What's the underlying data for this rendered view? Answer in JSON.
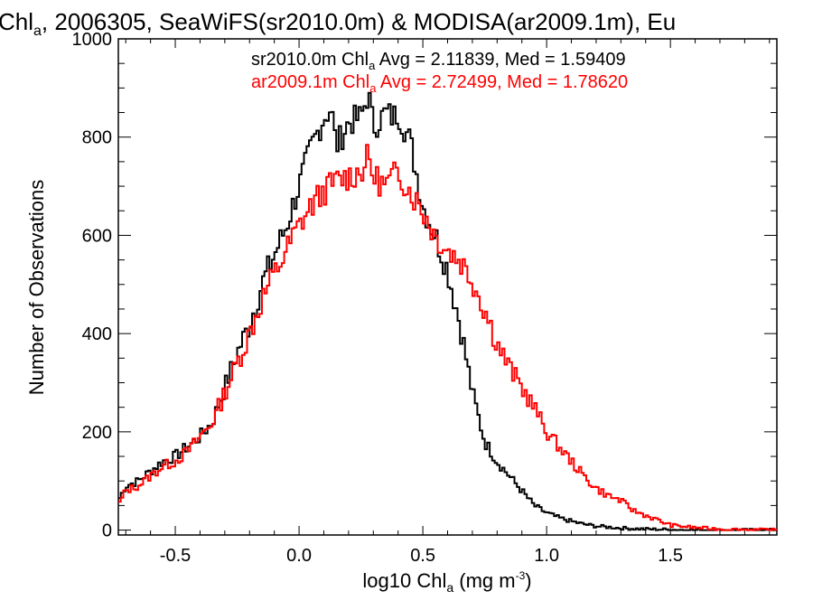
{
  "chart_data": {
    "type": "line",
    "title": {
      "prefix": "Chl",
      "sub": "a",
      "rest": ", 2006305, SeaWiFS(sr2010.0m) & MODISA(ar2009.1m), Eu"
    },
    "xlabel": {
      "prefix": "log10 Chl",
      "sub": "a",
      "units_open": " (mg m",
      "sup": "-3",
      "units_close": ")"
    },
    "ylabel": "Number of Observations",
    "xlim": [
      -0.73,
      1.93
    ],
    "ylim": [
      -10,
      1000
    ],
    "x_ticks": [
      "-0.5",
      "0.0",
      "0.5",
      "1.0",
      "1.5"
    ],
    "x_tick_values": [
      -0.5,
      0.0,
      0.5,
      1.0,
      1.5
    ],
    "y_ticks": [
      "0",
      "200",
      "400",
      "600",
      "800",
      "1000"
    ],
    "y_tick_values": [
      0,
      200,
      400,
      600,
      800,
      1000
    ],
    "grid": false,
    "series": [
      {
        "name": "sr2010.0m",
        "color": "#000000",
        "stat_label": {
          "prefix": "sr2010.0m Chl",
          "sub": "a",
          "rest": " Avg = 2.11839, Med = 1.59409"
        },
        "x": [
          -0.73,
          -0.7,
          -0.65,
          -0.6,
          -0.55,
          -0.5,
          -0.45,
          -0.4,
          -0.35,
          -0.3,
          -0.25,
          -0.2,
          -0.15,
          -0.1,
          -0.05,
          0.0,
          0.05,
          0.1,
          0.13,
          0.15,
          0.2,
          0.25,
          0.28,
          0.3,
          0.35,
          0.38,
          0.4,
          0.45,
          0.5,
          0.55,
          0.6,
          0.65,
          0.7,
          0.75,
          0.8,
          0.85,
          0.9,
          0.95,
          1.0,
          1.05,
          1.1,
          1.15,
          1.2,
          1.3,
          1.4,
          1.5,
          1.6,
          1.7,
          1.8,
          1.93
        ],
        "y": [
          60,
          90,
          100,
          120,
          140,
          150,
          170,
          190,
          220,
          290,
          360,
          420,
          500,
          560,
          620,
          700,
          780,
          840,
          860,
          780,
          830,
          840,
          890,
          820,
          850,
          840,
          850,
          790,
          660,
          600,
          530,
          420,
          280,
          180,
          140,
          110,
          80,
          50,
          35,
          25,
          18,
          12,
          8,
          4,
          2,
          1,
          0,
          0,
          0,
          0
        ]
      },
      {
        "name": "ar2009.1m",
        "color": "#ff0000",
        "stat_label": {
          "prefix": "ar2009.1m Chl",
          "sub": "a",
          "rest": " Avg = 2.72499, Med = 1.78620"
        },
        "x": [
          -0.73,
          -0.7,
          -0.65,
          -0.6,
          -0.55,
          -0.5,
          -0.45,
          -0.4,
          -0.35,
          -0.3,
          -0.25,
          -0.2,
          -0.15,
          -0.1,
          -0.05,
          0.0,
          0.05,
          0.1,
          0.15,
          0.2,
          0.25,
          0.28,
          0.3,
          0.35,
          0.4,
          0.45,
          0.5,
          0.55,
          0.6,
          0.65,
          0.7,
          0.75,
          0.8,
          0.85,
          0.9,
          0.95,
          1.0,
          1.05,
          1.1,
          1.15,
          1.2,
          1.25,
          1.3,
          1.35,
          1.4,
          1.45,
          1.5,
          1.6,
          1.7,
          1.8,
          1.93
        ],
        "y": [
          50,
          80,
          90,
          110,
          130,
          140,
          160,
          190,
          220,
          280,
          340,
          400,
          470,
          520,
          570,
          620,
          660,
          690,
          710,
          720,
          730,
          760,
          720,
          700,
          730,
          690,
          650,
          600,
          570,
          550,
          510,
          450,
          380,
          330,
          290,
          250,
          200,
          170,
          140,
          110,
          85,
          70,
          60,
          40,
          30,
          20,
          10,
          5,
          2,
          1,
          0
        ]
      }
    ]
  }
}
